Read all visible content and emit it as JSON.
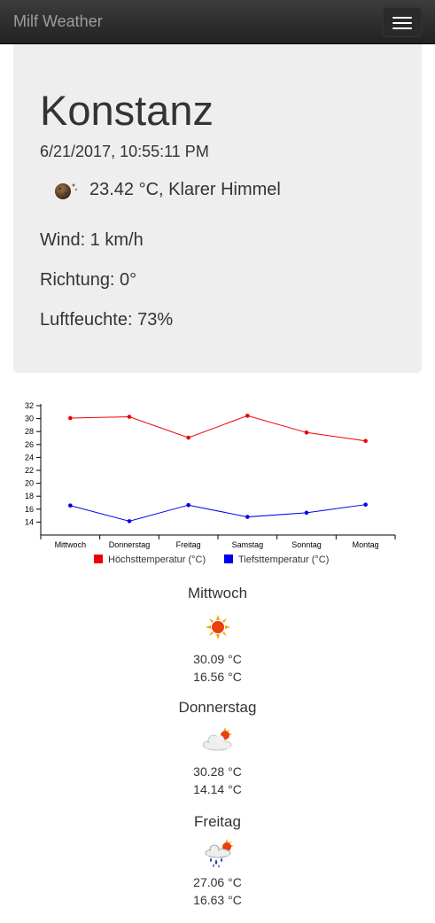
{
  "navbar": {
    "brand": "Milf Weather",
    "menu_icon": "hamburger-menu-icon"
  },
  "current": {
    "city": "Konstanz",
    "datetime": "6/21/2017, 10:55:11 PM",
    "icon": "clear-night-moon-icon",
    "summary": "23.42 °C, Klarer Himmel",
    "wind": "Wind: 1 km/h",
    "direction": "Richtung: 0°",
    "humidity": "Luftfeuchte: 73%"
  },
  "chart_data": {
    "type": "line",
    "categories": [
      "Mittwoch",
      "Donnerstag",
      "Freitag",
      "Samstag",
      "Sonntag",
      "Montag"
    ],
    "series": [
      {
        "name": "Höchsttemperatur (°C)",
        "color": "#ee0000",
        "values": [
          30.09,
          30.28,
          27.06,
          30.45,
          27.85,
          26.55
        ]
      },
      {
        "name": "Tiefsttemperatur (°C)",
        "color": "#0000ee",
        "values": [
          16.56,
          14.14,
          16.63,
          14.8,
          15.45,
          16.7
        ]
      }
    ],
    "ylim": [
      12,
      32
    ],
    "yticks": [
      "14",
      "16",
      "18",
      "20",
      "22",
      "24",
      "26",
      "28",
      "30",
      "32"
    ],
    "legend": "bottom"
  },
  "forecast": [
    {
      "day": "Mittwoch",
      "icon": "sunny-icon",
      "high": "30.09 °C",
      "low": "16.56 °C"
    },
    {
      "day": "Donnerstag",
      "icon": "partly-cloudy-icon",
      "high": "30.28 °C",
      "low": "14.14 °C"
    },
    {
      "day": "Freitag",
      "icon": "rain-showers-sun-icon",
      "high": "27.06 °C",
      "low": "16.63 °C"
    }
  ]
}
